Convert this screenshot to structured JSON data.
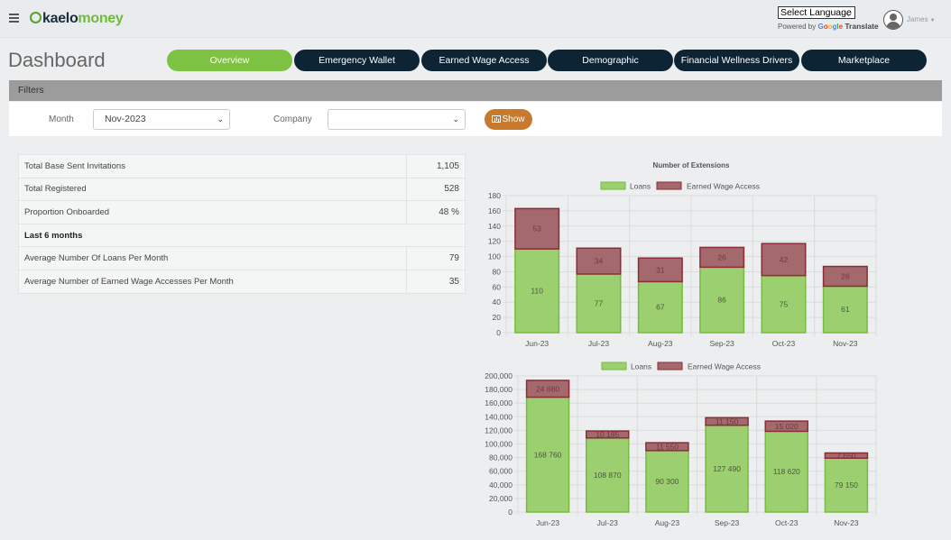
{
  "brand": {
    "prefix": "kaelo",
    "suffix": "money"
  },
  "language": {
    "select_label": "Select Language",
    "powered_by": "Powered by",
    "google": [
      "G",
      "o",
      "o",
      "g",
      "l",
      "e"
    ],
    "translate": "Translate"
  },
  "user": {
    "name": "James"
  },
  "page": {
    "title": "Dashboard"
  },
  "tabs": [
    {
      "label": "Overview",
      "active": true
    },
    {
      "label": "Emergency Wallet",
      "active": false
    },
    {
      "label": "Earned Wage Access",
      "active": false
    },
    {
      "label": "Demographic",
      "active": false
    },
    {
      "label": "Financial Wellness Drivers",
      "active": false
    },
    {
      "label": "Marketplace",
      "active": false
    }
  ],
  "filters": {
    "title": "Filters",
    "month_label": "Month",
    "month_value": "Nov-2023",
    "company_label": "Company",
    "company_value": "",
    "show_label": "Show"
  },
  "stats": {
    "rows": [
      {
        "label": "Total Base Sent Invitations",
        "value": "1,105"
      },
      {
        "label": "Total Registered",
        "value": "528"
      },
      {
        "label": "Proportion Onboarded",
        "value": "48 %"
      }
    ],
    "section": "Last 6 months",
    "rows2": [
      {
        "label": "Average Number Of Loans Per Month",
        "value": "79"
      },
      {
        "label": "Average Number of Earned Wage Accesses Per Month",
        "value": "35"
      }
    ]
  },
  "colors": {
    "loans": "#9ccf70",
    "loans_border": "#78bc3d",
    "ewa": "#a3696c",
    "ewa_border": "#8c2c37",
    "nav": "#0d2435",
    "active_tab": "#7dc243",
    "show_btn": "#c8792c"
  },
  "chart_data": [
    {
      "type": "bar",
      "stacked": true,
      "title": "Number of Extensions",
      "categories": [
        "Jun-23",
        "Jul-23",
        "Aug-23",
        "Sep-23",
        "Oct-23",
        "Nov-23"
      ],
      "series": [
        {
          "name": "Loans",
          "values": [
            110,
            77,
            67,
            86,
            75,
            61
          ]
        },
        {
          "name": "Earned Wage Access",
          "values": [
            53,
            34,
            31,
            26,
            42,
            26
          ]
        }
      ],
      "ylim": [
        0,
        180
      ],
      "yticks": [
        0,
        20,
        40,
        60,
        80,
        100,
        120,
        140,
        160,
        180
      ],
      "legend": "top",
      "grid": true
    },
    {
      "type": "bar",
      "stacked": true,
      "title": "",
      "categories": [
        "Jun-23",
        "Jul-23",
        "Aug-23",
        "Sep-23",
        "Oct-23",
        "Nov-23"
      ],
      "series": [
        {
          "name": "Loans",
          "values": [
            168760,
            108870,
            90300,
            127490,
            118620,
            79150
          ],
          "labels": [
            "168 760",
            "108 870",
            "90 300",
            "127 490",
            "118 620",
            "79 150"
          ]
        },
        {
          "name": "Earned Wage Access",
          "values": [
            24680,
            10185,
            11550,
            11150,
            15020,
            7650
          ],
          "labels": [
            "24 680",
            "10 185",
            "11 550",
            "11 150",
            "15 020",
            "7 650"
          ]
        }
      ],
      "ylim": [
        0,
        200000
      ],
      "yticks": [
        "0",
        "20,000",
        "40,000",
        "60,000",
        "80,000",
        "100,000",
        "120,000",
        "140,000",
        "160,000",
        "180,000",
        "200,000"
      ],
      "legend": "top",
      "grid": true
    }
  ]
}
